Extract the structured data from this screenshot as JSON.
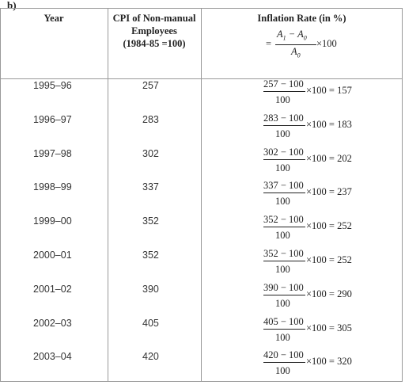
{
  "part_label": "b)",
  "headers": {
    "year": "Year",
    "cpi": [
      "CPI of Non-manual",
      "Employees",
      "(1984-85 =100)"
    ],
    "inflation": "Inflation Rate (in %)"
  },
  "formula": {
    "equals": "=",
    "numerator_a": "A",
    "numerator_sub1": "1",
    "minus": " − ",
    "numerator_b": "A",
    "numerator_sub0": "0",
    "denominator": "A",
    "denominator_sub": "0",
    "times": "×100"
  },
  "rows": [
    {
      "year": "1995–96",
      "cpi": "257",
      "numerator": "257 − 100",
      "denominator": "100",
      "result": "×100 = 157"
    },
    {
      "year": "1996–97",
      "cpi": "283",
      "numerator": "283 − 100",
      "denominator": "100",
      "result": "×100 = 183"
    },
    {
      "year": "1997–98",
      "cpi": "302",
      "numerator": "302 − 100",
      "denominator": "100",
      "result": "×100 = 202"
    },
    {
      "year": "1998–99",
      "cpi": "337",
      "numerator": "337 − 100",
      "denominator": "100",
      "result": "×100 = 237"
    },
    {
      "year": "1999–00",
      "cpi": "352",
      "numerator": "352 − 100",
      "denominator": "100",
      "result": "×100 = 252"
    },
    {
      "year": "2000–01",
      "cpi": "352",
      "numerator": "352 − 100",
      "denominator": "100",
      "result": "×100 = 252"
    },
    {
      "year": "2001–02",
      "cpi": "390",
      "numerator": "390 − 100",
      "denominator": "100",
      "result": "×100 = 290"
    },
    {
      "year": "2002–03",
      "cpi": "405",
      "numerator": "405 − 100",
      "denominator": "100",
      "result": "×100 = 305"
    },
    {
      "year": "2003–04",
      "cpi": "420",
      "numerator": "420 − 100",
      "denominator": "100",
      "result": "×100 = 320"
    }
  ]
}
